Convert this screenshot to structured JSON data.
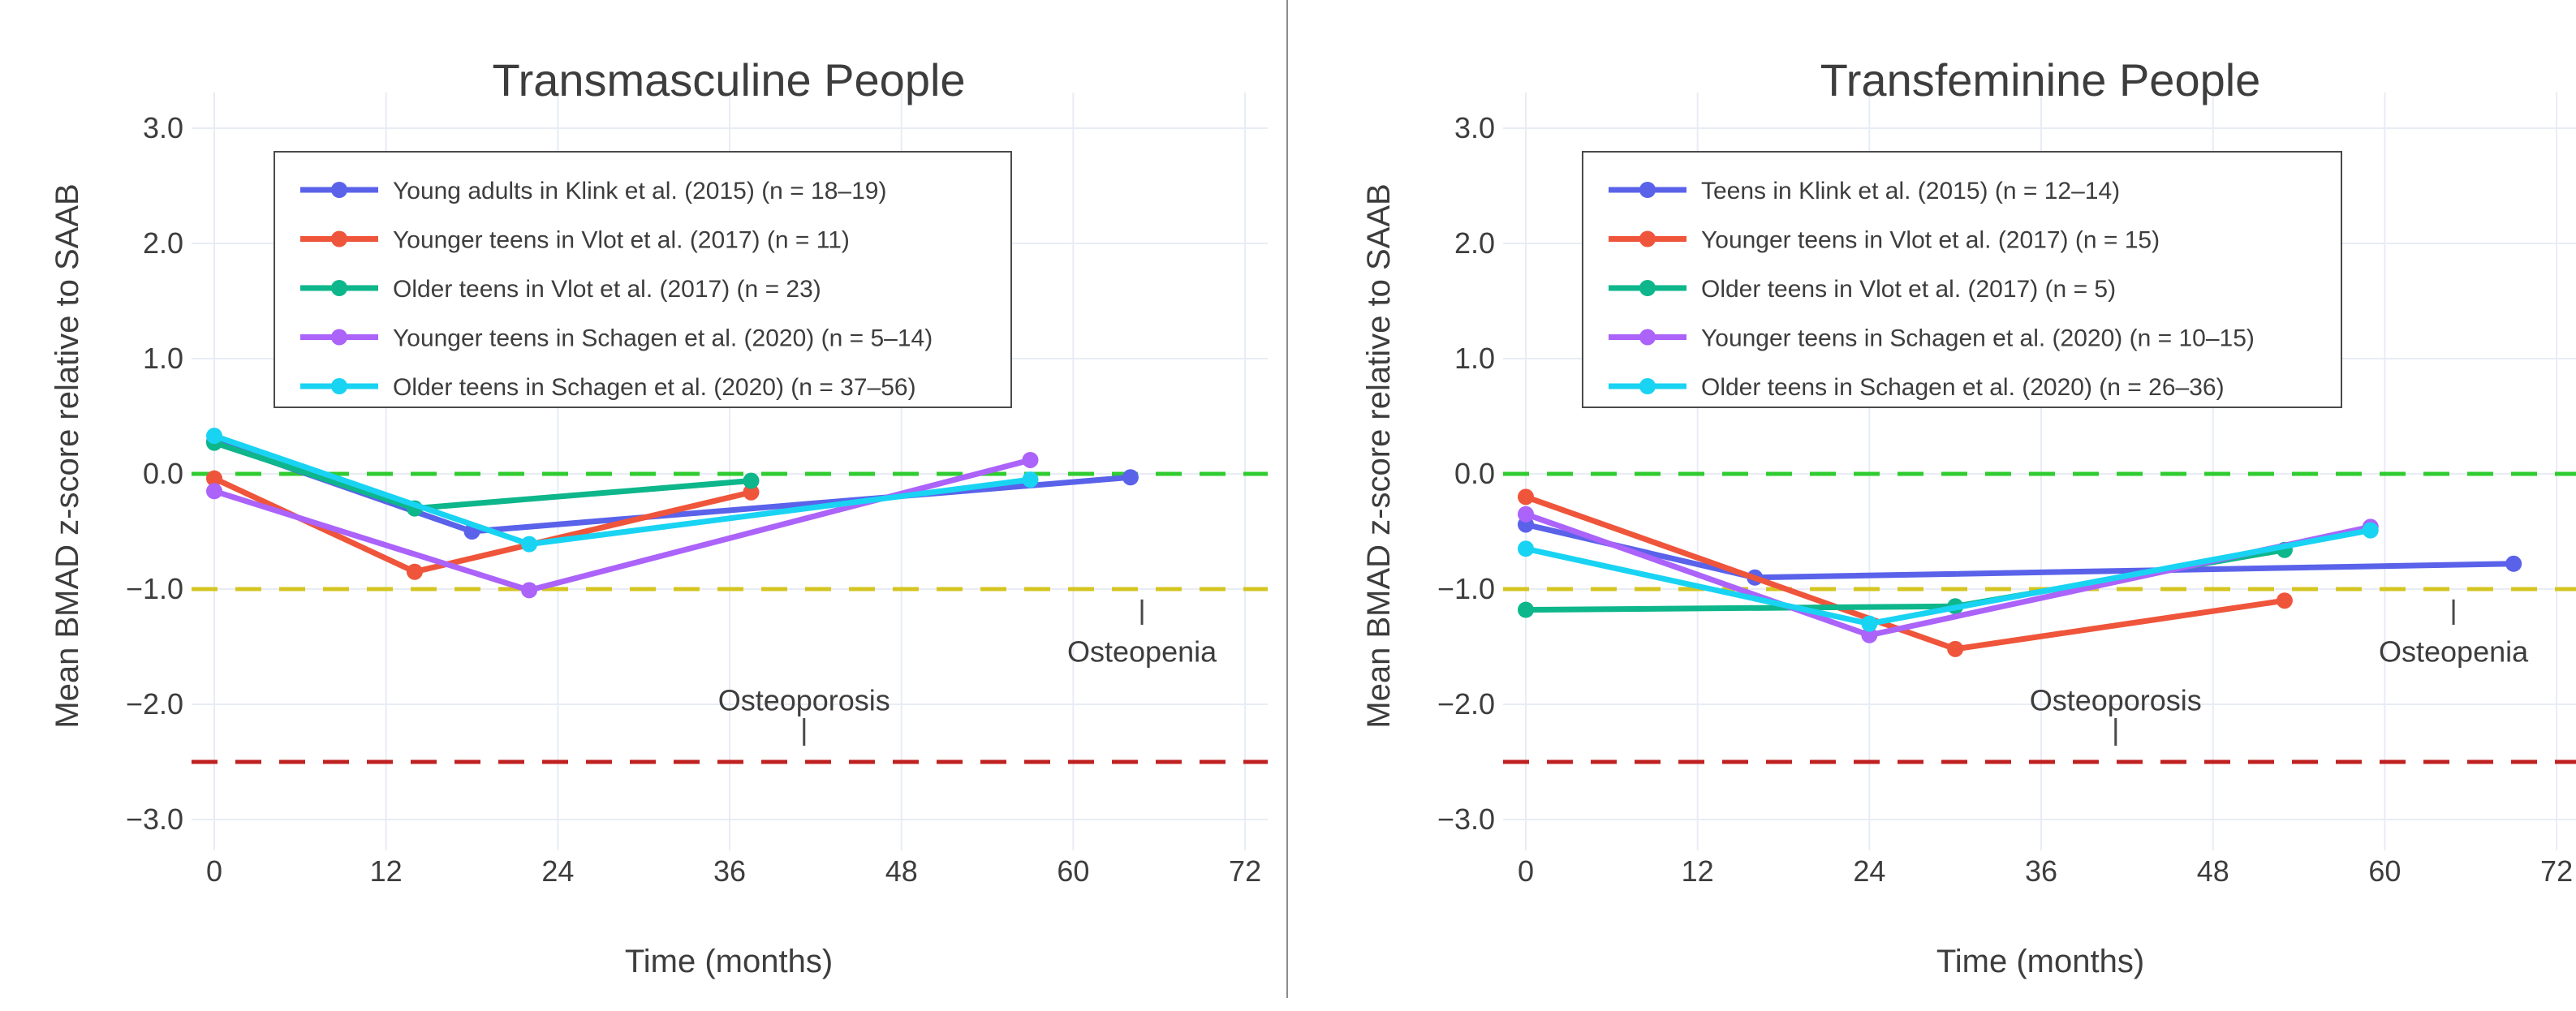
{
  "page": {
    "background": "#ffffff",
    "divider_color": "#8c8c8c",
    "grid_color": "#e8ecf5",
    "text_color": "#3d3d3d"
  },
  "shared": {
    "xlabel": "Time (months)",
    "ylabel": "Mean BMAD z-score relative to SAAB",
    "x_ticks": [
      0,
      12,
      24,
      36,
      48,
      60,
      72
    ],
    "y_ticks": [
      3,
      2,
      1,
      0,
      -1,
      -2,
      -3
    ],
    "y_tick_labels": [
      "3.0",
      "2.0",
      "1.0",
      "0.0",
      "−1.0",
      "−2.0",
      "−3.0"
    ],
    "ylim": [
      -3,
      3
    ],
    "xlim": [
      0,
      72
    ],
    "reference_lines": [
      {
        "value": 0,
        "color": "#2ecc2e"
      },
      {
        "value": -1,
        "color": "#d4c520"
      },
      {
        "value": -2.5,
        "color": "#c02020"
      }
    ],
    "annotations": [
      {
        "text": "Osteoporosis",
        "x_months": 41.2,
        "y_value": -1.96,
        "pointer": {
          "x_months": 41.2,
          "from_value": -2.12,
          "to_value": -2.36
        }
      },
      {
        "text": "Osteopenia",
        "x_months": 64.8,
        "y_value": -1.54,
        "pointer": {
          "x_months": 64.8,
          "from_value": -1.09,
          "to_value": -1.31
        }
      }
    ]
  },
  "chart_data": [
    {
      "type": "line",
      "title": "Transmasculine People",
      "xlabel": "Time (months)",
      "ylabel": "Mean BMAD z-score relative to SAAB",
      "legend_position": "upper-left-inside",
      "grid": true,
      "series": [
        {
          "name": "Young adults in Klink et al. (2015) (n = 18–19)",
          "color": "#5a62ea",
          "x": [
            0,
            18,
            64
          ],
          "y": [
            0.28,
            -0.5,
            -0.03
          ]
        },
        {
          "name": "Younger teens in Vlot et al. (2017) (n = 11)",
          "color": "#ef553b",
          "x": [
            0,
            14,
            37.5
          ],
          "y": [
            -0.04,
            -0.85,
            -0.16
          ]
        },
        {
          "name": "Older teens in Vlot et al. (2017) (n = 23)",
          "color": "#0eb68b",
          "x": [
            0,
            14,
            37.5
          ],
          "y": [
            0.27,
            -0.3,
            -0.06
          ]
        },
        {
          "name": "Younger teens in Schagen et al. (2020) (n = 5–14)",
          "color": "#ab63fa",
          "x": [
            0,
            22,
            57
          ],
          "y": [
            -0.15,
            -1.01,
            0.12
          ]
        },
        {
          "name": "Older teens in Schagen et al. (2020) (n = 37–56)",
          "color": "#19d3f3",
          "x": [
            0,
            22,
            57
          ],
          "y": [
            0.33,
            -0.61,
            -0.05
          ]
        }
      ]
    },
    {
      "type": "line",
      "title": "Transfeminine People",
      "xlabel": "Time (months)",
      "ylabel": "Mean BMAD z-score relative to SAAB",
      "legend_position": "upper-left-inside",
      "grid": true,
      "series": [
        {
          "name": "Teens in Klink et al. (2015) (n = 12–14)",
          "color": "#5a62ea",
          "x": [
            0,
            16,
            69
          ],
          "y": [
            -0.44,
            -0.9,
            -0.78
          ]
        },
        {
          "name": "Younger teens in Vlot et al. (2017) (n = 15)",
          "color": "#ef553b",
          "x": [
            0,
            30,
            53
          ],
          "y": [
            -0.2,
            -1.52,
            -1.1
          ]
        },
        {
          "name": "Older teens in Vlot et al. (2017) (n = 5)",
          "color": "#0eb68b",
          "x": [
            0,
            30,
            53
          ],
          "y": [
            -1.18,
            -1.15,
            -0.66
          ]
        },
        {
          "name": "Younger teens in Schagen et al. (2020) (n = 10–15)",
          "color": "#ab63fa",
          "x": [
            0,
            24,
            59
          ],
          "y": [
            -0.35,
            -1.4,
            -0.46
          ]
        },
        {
          "name": "Older teens in Schagen et al. (2020) (n = 26–36)",
          "color": "#19d3f3",
          "x": [
            0,
            24,
            59
          ],
          "y": [
            -0.65,
            -1.3,
            -0.49
          ]
        }
      ]
    }
  ]
}
